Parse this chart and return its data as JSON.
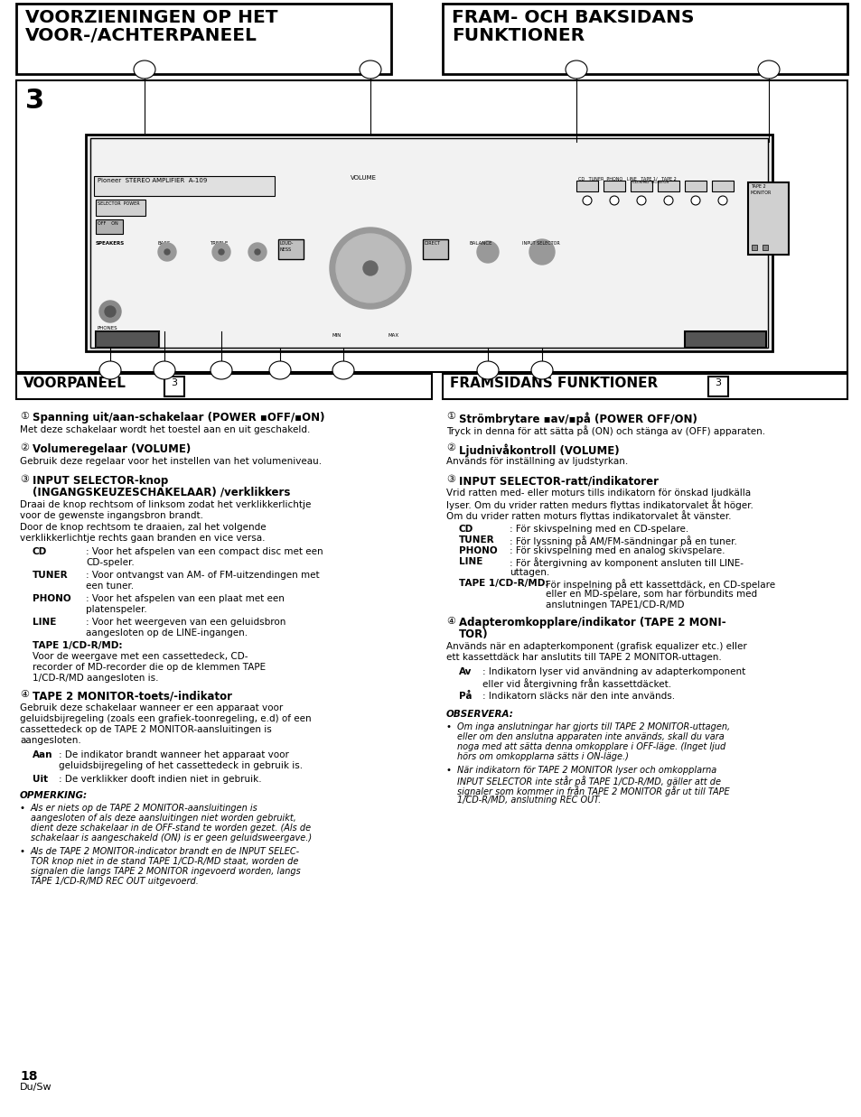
{
  "bg_color": "#ffffff",
  "title_left_line1": "VOORZIENINGEN OP HET",
  "title_left_line2": "VOOR-/ACHTERPANEEL",
  "title_right_line1": "FRAM- OCH BAKSIDANS",
  "title_right_line2": "FUNKTIONER",
  "section_left": "VOORPANEEL",
  "section_right": "FRAMSIDANS FUNKTIONER",
  "section_number": "3",
  "page_number": "18",
  "page_lang": "Du/Sw"
}
